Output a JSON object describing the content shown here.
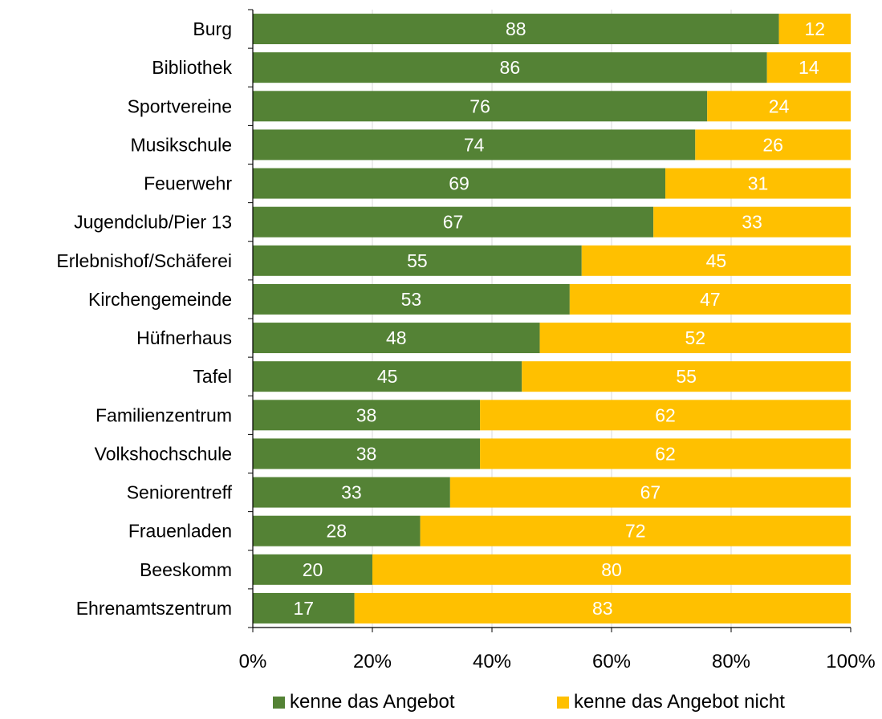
{
  "chart_data": {
    "type": "bar",
    "orientation": "horizontal",
    "stacked": "percent",
    "categories": [
      "Burg",
      "Bibliothek",
      "Sportvereine",
      "Musikschule",
      "Feuerwehr",
      "Jugendclub/Pier 13",
      "Erlebnishof/Schäferei",
      "Kirchengemeinde",
      "Hüfnerhaus",
      "Tafel",
      "Familienzentrum",
      "Volkshochschule",
      "Seniorentreff",
      "Frauenladen",
      "Beeskomm",
      "Ehrenamtszentrum"
    ],
    "series": [
      {
        "name": "kenne das Angebot",
        "color": "#548235",
        "values": [
          88,
          86,
          76,
          74,
          69,
          67,
          55,
          53,
          48,
          45,
          38,
          38,
          33,
          28,
          20,
          17
        ]
      },
      {
        "name": "kenne das Angebot nicht",
        "color": "#FFC000",
        "values": [
          12,
          14,
          24,
          26,
          31,
          33,
          45,
          47,
          52,
          55,
          62,
          62,
          67,
          72,
          80,
          83
        ]
      }
    ],
    "x_ticks": [
      "0%",
      "20%",
      "40%",
      "60%",
      "80%",
      "100%"
    ],
    "xlim": [
      0,
      100
    ],
    "grid": "vertical",
    "legend": "bottom",
    "data_labels": true,
    "label_color": "#ffffff"
  }
}
